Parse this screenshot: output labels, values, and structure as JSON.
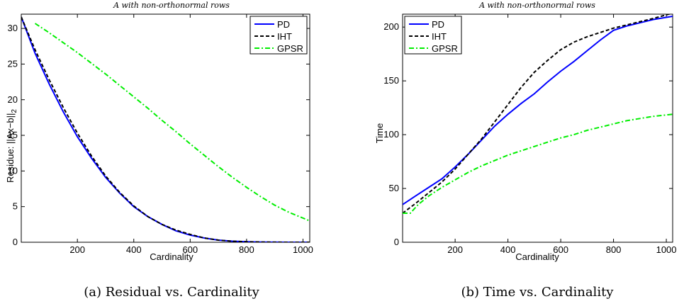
{
  "chart_data": [
    {
      "type": "line",
      "title": "A with non-orthonormal rows",
      "xlabel": "Cardinality",
      "ylabel": "Residue: ||Ax−b||",
      "ylabel_sub": "2",
      "xlim": [
        1,
        1024
      ],
      "ylim": [
        0,
        32
      ],
      "xticks": [
        200,
        400,
        600,
        800,
        1000
      ],
      "yticks": [
        0,
        5,
        10,
        15,
        20,
        25,
        30
      ],
      "legend_position": "top-right",
      "caption": "(a)  Residual vs. Cardinality",
      "series": [
        {
          "name": "PD",
          "color": "#0000ff",
          "style": "solid",
          "x": [
            1,
            50,
            100,
            150,
            200,
            250,
            300,
            350,
            400,
            450,
            500,
            550,
            600,
            650,
            700,
            750,
            800,
            850,
            900,
            950,
            1024
          ],
          "y": [
            31.6,
            26.5,
            22.2,
            18.3,
            14.8,
            11.8,
            9.1,
            6.9,
            5.0,
            3.6,
            2.5,
            1.6,
            1.0,
            0.6,
            0.3,
            0.15,
            0.07,
            0.03,
            0.01,
            0.0,
            0.0
          ]
        },
        {
          "name": "IHT",
          "color": "#000000",
          "style": "dashed",
          "x": [
            1,
            50,
            100,
            150,
            200,
            250,
            300,
            350,
            400,
            450,
            500,
            550,
            600,
            650,
            700,
            750,
            800,
            850,
            900,
            950,
            1024
          ],
          "y": [
            31.6,
            27.0,
            22.8,
            18.9,
            15.3,
            12.1,
            9.3,
            7.0,
            5.1,
            3.6,
            2.5,
            1.7,
            1.1,
            0.6,
            0.3,
            0.15,
            0.07,
            0.03,
            0.01,
            0.0,
            0.0
          ]
        },
        {
          "name": "GPSR",
          "color": "#00ee00",
          "style": "dashdot",
          "x": [
            50,
            100,
            150,
            200,
            250,
            300,
            350,
            400,
            450,
            500,
            550,
            600,
            650,
            700,
            750,
            800,
            850,
            900,
            950,
            1024
          ],
          "y": [
            30.7,
            29.4,
            28.0,
            26.6,
            25.1,
            23.6,
            22.0,
            20.4,
            18.8,
            17.1,
            15.5,
            13.8,
            12.2,
            10.6,
            9.1,
            7.7,
            6.4,
            5.2,
            4.2,
            3.0
          ]
        }
      ]
    },
    {
      "type": "line",
      "title": "A with non-orthonormal rows",
      "xlabel": "Cardinality",
      "ylabel": "Time",
      "xlim": [
        1,
        1024
      ],
      "ylim": [
        0,
        212
      ],
      "xticks": [
        200,
        400,
        600,
        800,
        1000
      ],
      "yticks": [
        0,
        50,
        100,
        150,
        200
      ],
      "legend_position": "top-left",
      "caption": "(b)  Time vs. Cardinality",
      "series": [
        {
          "name": "PD",
          "color": "#0000ff",
          "style": "solid",
          "x": [
            1,
            50,
            100,
            150,
            200,
            250,
            300,
            350,
            400,
            450,
            500,
            550,
            600,
            650,
            700,
            750,
            800,
            850,
            900,
            950,
            1024
          ],
          "y": [
            35,
            43,
            51,
            59,
            70,
            82,
            95,
            108,
            119,
            129,
            138,
            149,
            159,
            168,
            178,
            188,
            197,
            201,
            204,
            207,
            210
          ]
        },
        {
          "name": "IHT",
          "color": "#000000",
          "style": "dashed",
          "x": [
            1,
            50,
            100,
            150,
            200,
            250,
            300,
            350,
            400,
            450,
            500,
            550,
            600,
            650,
            700,
            750,
            800,
            850,
            900,
            950,
            1024
          ],
          "y": [
            27,
            36,
            46,
            56,
            68,
            82,
            96,
            112,
            128,
            144,
            158,
            169,
            179,
            186,
            191,
            195,
            199,
            202,
            205,
            208,
            213
          ]
        },
        {
          "name": "GPSR",
          "color": "#00ee00",
          "style": "dashdot",
          "x": [
            1,
            30,
            60,
            100,
            150,
            200,
            250,
            300,
            350,
            400,
            450,
            500,
            550,
            600,
            650,
            700,
            750,
            800,
            850,
            900,
            950,
            1024
          ],
          "y": [
            27,
            27,
            35,
            43,
            51,
            58,
            65,
            71,
            76,
            81,
            85,
            89,
            93,
            97,
            100,
            104,
            107,
            110,
            113,
            115,
            117,
            119
          ]
        }
      ]
    }
  ]
}
